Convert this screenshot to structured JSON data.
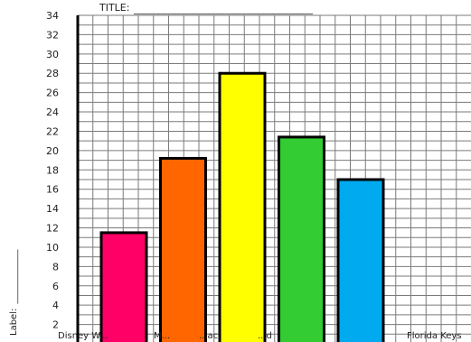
{
  "chart_data": {
    "type": "bar",
    "title_prefix": "TITLE:",
    "title_blank": "____________________________________",
    "ylabel": "Label:",
    "ylabel_blank": "____________",
    "categories": [
      "Disney W...",
      "M...",
      "...ac",
      "...d",
      "",
      "Florida Keys"
    ],
    "values": [
      11.5,
      19.2,
      28,
      21.4,
      17,
      0
    ],
    "bar_colors": [
      "#ff0066",
      "#ff6600",
      "#ffff00",
      "#33cc33",
      "#00aaee",
      "#ffffff"
    ],
    "yticks": [
      2,
      4,
      6,
      8,
      10,
      12,
      14,
      16,
      18,
      20,
      22,
      24,
      26,
      28,
      30,
      32,
      34
    ],
    "ylim": [
      0,
      34
    ],
    "grid": true
  }
}
